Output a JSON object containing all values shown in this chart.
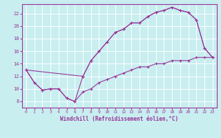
{
  "xlabel": "Windchill (Refroidissement éolien,°C)",
  "background_color": "#c8eef0",
  "line_color": "#993399",
  "grid_color": "#ffffff",
  "xlim": [
    -0.5,
    23.5
  ],
  "ylim": [
    7.0,
    23.5
  ],
  "yticks": [
    8,
    10,
    12,
    14,
    16,
    18,
    20,
    22
  ],
  "xticks": [
    0,
    1,
    2,
    3,
    4,
    5,
    6,
    7,
    8,
    9,
    10,
    11,
    12,
    13,
    14,
    15,
    16,
    17,
    18,
    19,
    20,
    21,
    22,
    23
  ],
  "line1_x": [
    0,
    1,
    2,
    3,
    4,
    5,
    6,
    7,
    8,
    9,
    10,
    11,
    12,
    13,
    14,
    15,
    16,
    17,
    18,
    19,
    20,
    21,
    22,
    23
  ],
  "line1_y": [
    13.0,
    11.0,
    9.8,
    10.0,
    10.0,
    8.5,
    8.0,
    9.5,
    10.0,
    11.0,
    11.5,
    12.0,
    12.5,
    13.0,
    13.5,
    13.5,
    14.0,
    14.0,
    14.5,
    14.5,
    14.5,
    15.0,
    15.0,
    15.0
  ],
  "line2_x": [
    0,
    1,
    2,
    3,
    4,
    5,
    6,
    7,
    8,
    9,
    10,
    11,
    12,
    13,
    14,
    15,
    16,
    17,
    18,
    19,
    20,
    21,
    22,
    23
  ],
  "line2_y": [
    13.0,
    11.0,
    9.8,
    10.0,
    10.0,
    8.5,
    8.0,
    12.0,
    14.5,
    16.0,
    17.5,
    19.0,
    19.5,
    20.5,
    20.5,
    21.5,
    22.2,
    22.5,
    23.0,
    22.5,
    22.2,
    21.0,
    16.5,
    15.0
  ],
  "line3_x": [
    0,
    7,
    8,
    9,
    10,
    11,
    12,
    13,
    14,
    15,
    16,
    17,
    18,
    19,
    20,
    21,
    22,
    23
  ],
  "line3_y": [
    13.0,
    12.0,
    14.5,
    16.0,
    17.5,
    19.0,
    19.5,
    20.5,
    20.5,
    21.5,
    22.2,
    22.5,
    23.0,
    22.5,
    22.2,
    21.0,
    16.5,
    15.0
  ]
}
